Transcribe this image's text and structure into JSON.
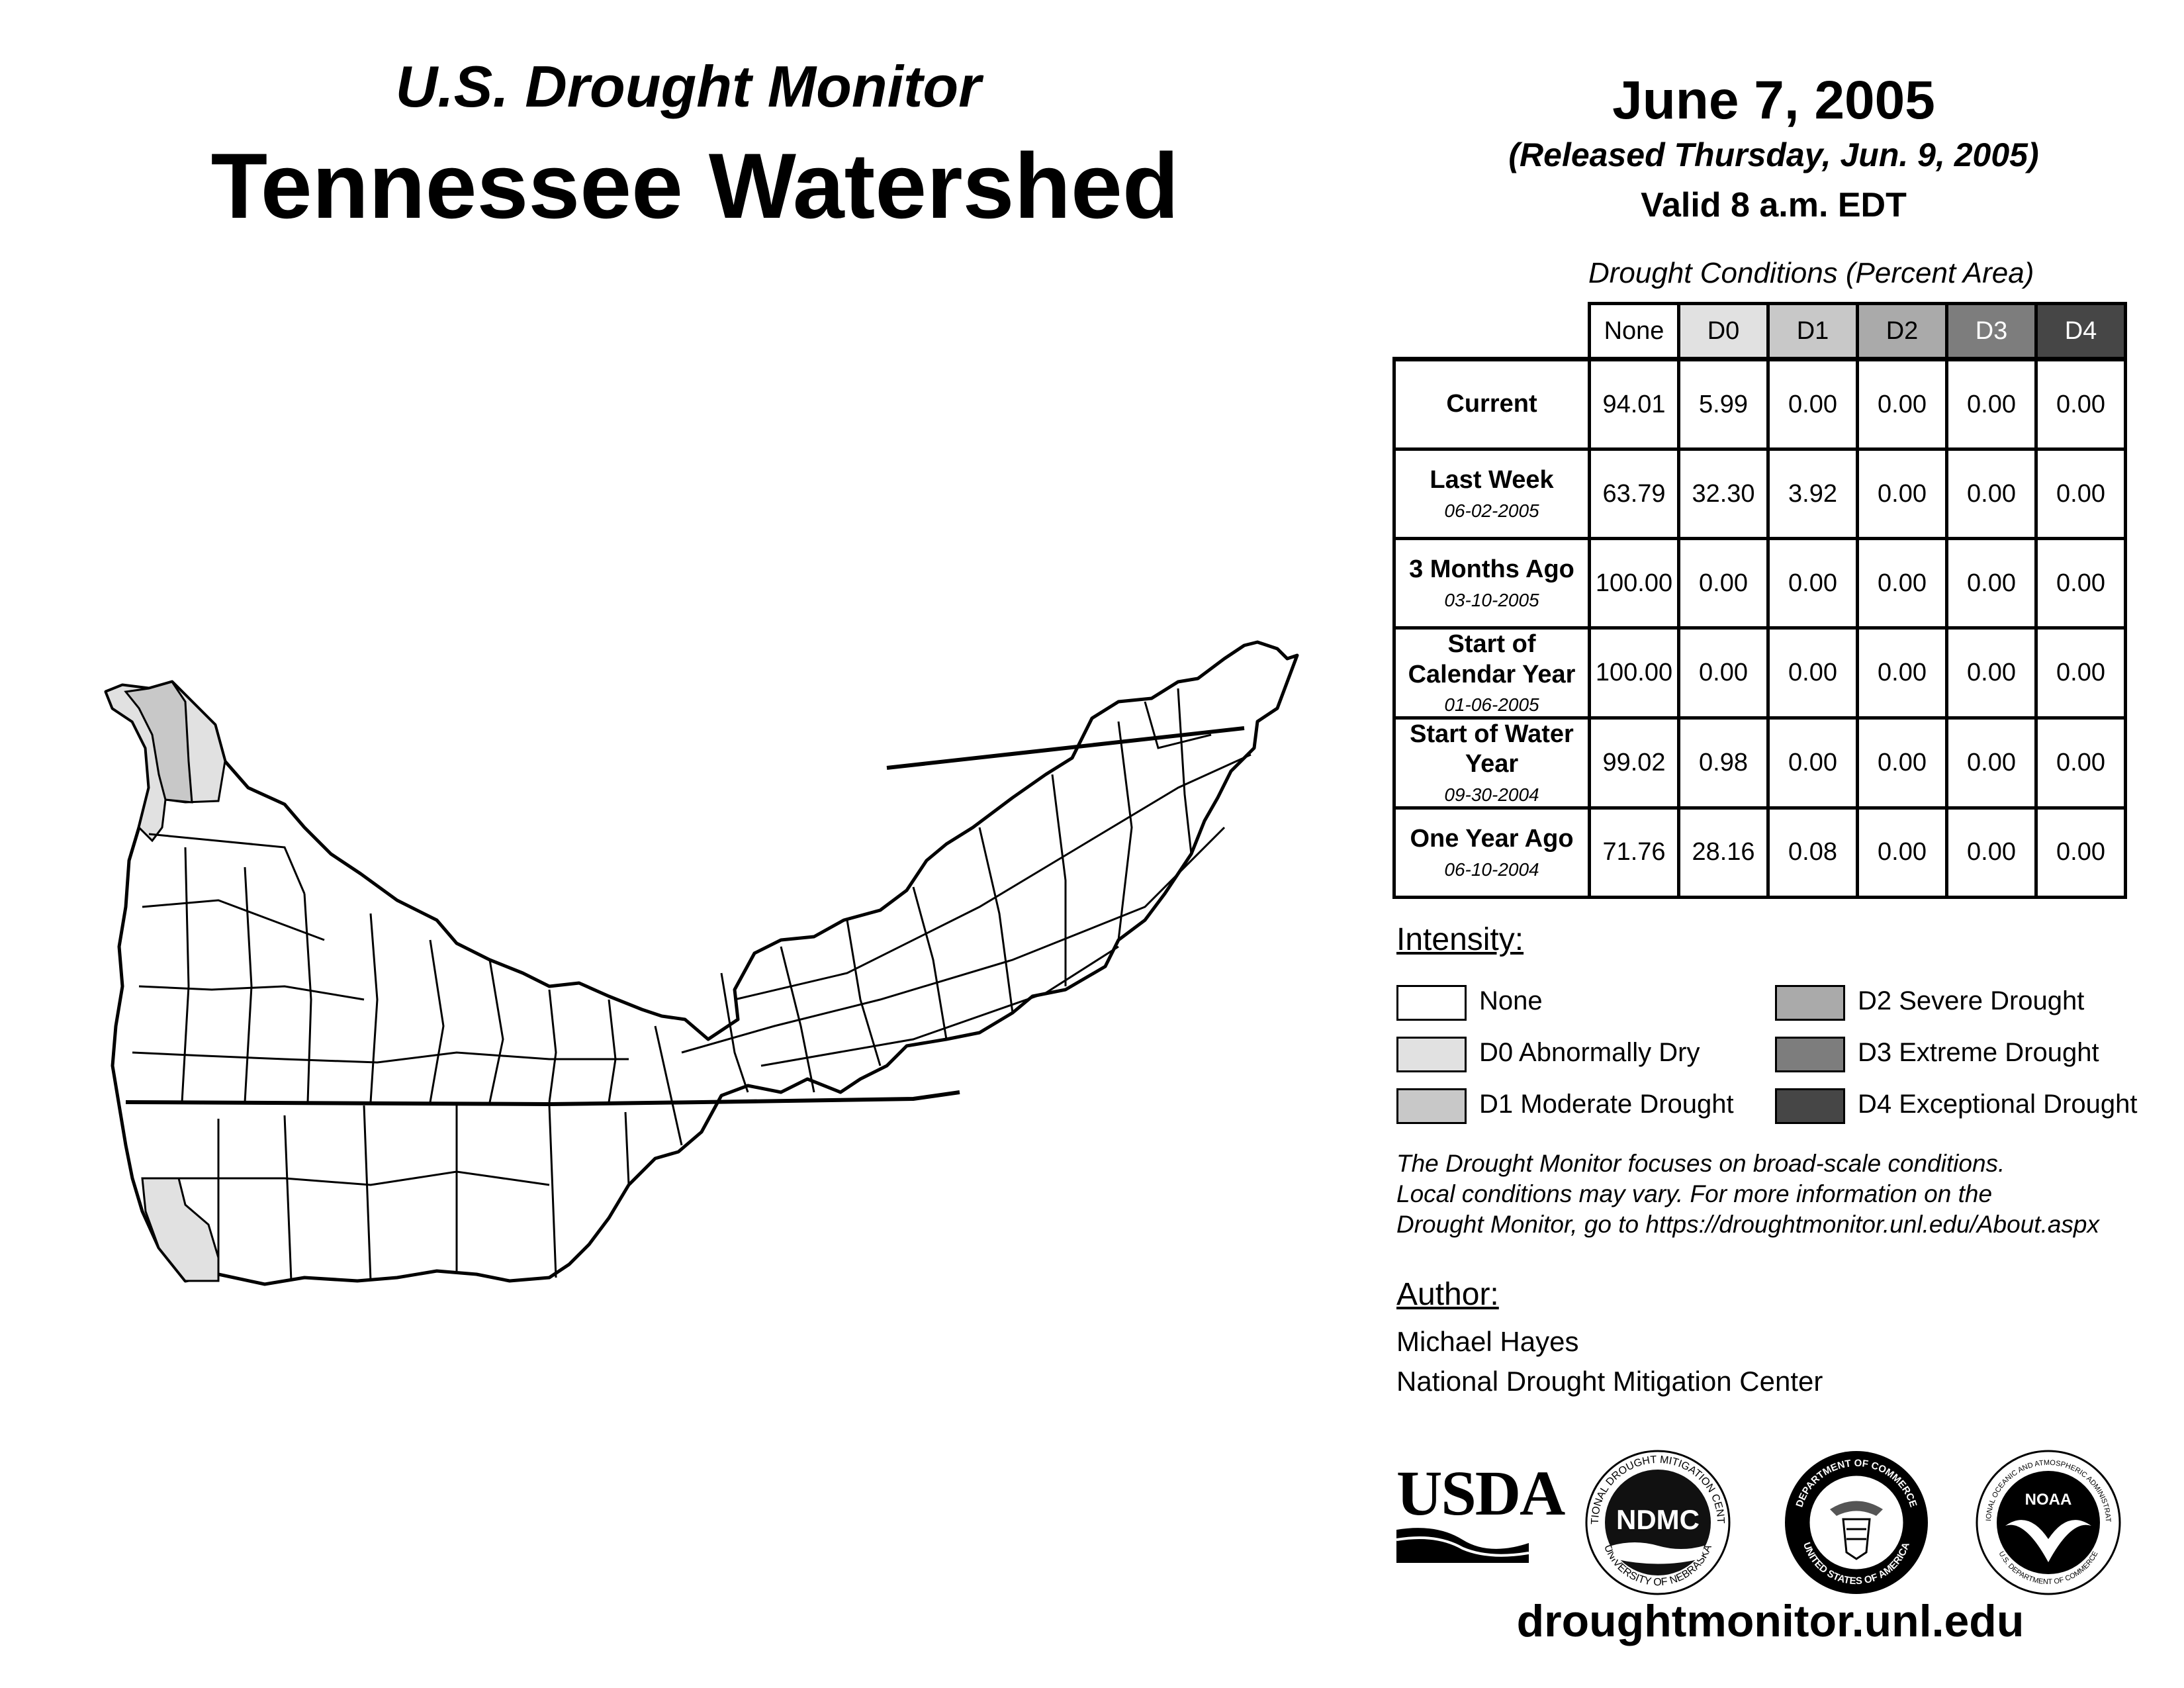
{
  "header": {
    "subtitle": "U.S. Drought Monitor",
    "title": "Tennessee Watershed",
    "date": "June 7, 2005",
    "released": "(Released Thursday, Jun. 9, 2005)",
    "valid": "Valid 8 a.m. EDT"
  },
  "table": {
    "caption": "Drought Conditions (Percent Area)",
    "columns": [
      "None",
      "D0",
      "D1",
      "D2",
      "D3",
      "D4"
    ],
    "rows": [
      {
        "label": "Current",
        "date": "",
        "values": [
          "94.01",
          "5.99",
          "0.00",
          "0.00",
          "0.00",
          "0.00"
        ]
      },
      {
        "label": "Last Week",
        "date": "06-02-2005",
        "values": [
          "63.79",
          "32.30",
          "3.92",
          "0.00",
          "0.00",
          "0.00"
        ]
      },
      {
        "label": "3 Months Ago",
        "date": "03-10-2005",
        "values": [
          "100.00",
          "0.00",
          "0.00",
          "0.00",
          "0.00",
          "0.00"
        ]
      },
      {
        "label": "Start of Calendar Year",
        "date": "01-06-2005",
        "values": [
          "100.00",
          "0.00",
          "0.00",
          "0.00",
          "0.00",
          "0.00"
        ]
      },
      {
        "label": "Start of Water Year",
        "date": "09-30-2004",
        "values": [
          "99.02",
          "0.98",
          "0.00",
          "0.00",
          "0.00",
          "0.00"
        ]
      },
      {
        "label": "One Year Ago",
        "date": "06-10-2004",
        "values": [
          "71.76",
          "28.16",
          "0.08",
          "0.00",
          "0.00",
          "0.00"
        ]
      }
    ]
  },
  "legend": {
    "title": "Intensity:",
    "items": [
      {
        "label": "None",
        "color": "#ffffff"
      },
      {
        "label": "D0 Abnormally Dry",
        "color": "#e1e1e1"
      },
      {
        "label": "D1 Moderate Drought",
        "color": "#c8c8c8"
      },
      {
        "label": "D2 Severe Drought",
        "color": "#aaaaaa"
      },
      {
        "label": "D3 Extreme Drought",
        "color": "#7d7d7d"
      },
      {
        "label": "D4 Exceptional Drought",
        "color": "#464646"
      }
    ]
  },
  "note": {
    "line1": "The Drought Monitor focuses on broad-scale conditions.",
    "line2": "Local conditions may vary. For more information on the",
    "line3": "Drought Monitor, go to https://droughtmonitor.unl.edu/About.aspx"
  },
  "author": {
    "title": "Author:",
    "name": "Michael Hayes",
    "org": "National Drought Mitigation Center"
  },
  "logos": {
    "usda": "USDA",
    "ndmc": "NDMC",
    "ndmc_ring_top": "NATIONAL DROUGHT MITIGATION CENTER",
    "ndmc_ring_bottom": "UNIVERSITY OF NEBRASKA",
    "doc_ring_top": "DEPARTMENT OF COMMERCE",
    "doc_ring_bottom": "UNITED STATES OF AMERICA",
    "noaa": "NOAA",
    "noaa_ring_top": "NATIONAL OCEANIC AND ATMOSPHERIC ADMINISTRATION",
    "noaa_ring_bottom": "U.S. DEPARTMENT OF COMMERCE"
  },
  "footer": {
    "site": "droughtmonitor.unl.edu"
  }
}
